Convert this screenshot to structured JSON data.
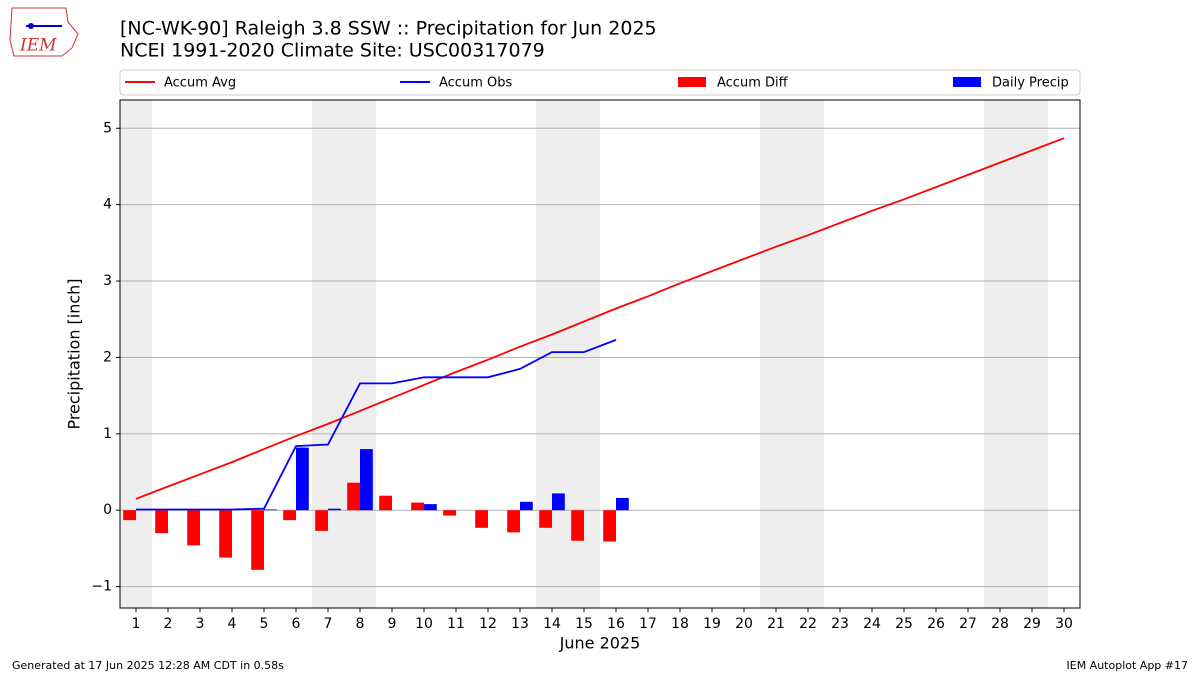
{
  "logo_text": "IEM",
  "chart_data": {
    "type": "combo",
    "title": "[NC-WK-90] Raleigh 3.8 SSW :: Precipitation for Jun 2025",
    "subtitle": "NCEI 1991-2020 Climate Site: USC00317079",
    "xlabel": "June 2025",
    "ylabel": "Precipitation [inch]",
    "x": [
      1,
      2,
      3,
      4,
      5,
      6,
      7,
      8,
      9,
      10,
      11,
      12,
      13,
      14,
      15,
      16,
      17,
      18,
      19,
      20,
      21,
      22,
      23,
      24,
      25,
      26,
      27,
      28,
      29,
      30
    ],
    "xlim": [
      0.5,
      30.5
    ],
    "xticks": [
      1,
      2,
      3,
      4,
      5,
      6,
      7,
      8,
      9,
      10,
      11,
      12,
      13,
      14,
      15,
      16,
      17,
      18,
      19,
      20,
      21,
      22,
      23,
      24,
      25,
      26,
      27,
      28,
      29,
      30
    ],
    "ylim": [
      -1.28,
      5.37
    ],
    "yticks": [
      {
        "value": -1,
        "label": "−1"
      },
      0,
      1,
      2,
      3,
      4,
      5
    ],
    "grid": true,
    "shaded_days": [
      1,
      7,
      8,
      14,
      15,
      21,
      22,
      28,
      29
    ],
    "series": [
      {
        "name": "Accum Avg",
        "kind": "line",
        "color": "#ff0000",
        "values": [
          0.15,
          0.31,
          0.47,
          0.63,
          0.8,
          0.97,
          1.13,
          1.3,
          1.47,
          1.64,
          1.81,
          1.97,
          2.14,
          2.3,
          2.47,
          2.64,
          2.8,
          2.97,
          3.13,
          3.29,
          3.45,
          3.6,
          3.76,
          3.92,
          4.07,
          4.23,
          4.39,
          4.55,
          4.71,
          4.87
        ]
      },
      {
        "name": "Accum Obs",
        "kind": "line",
        "color": "#0000ff",
        "values": [
          0.01,
          0.01,
          0.01,
          0.01,
          0.02,
          0.84,
          0.86,
          1.66,
          1.66,
          1.74,
          1.74,
          1.74,
          1.85,
          2.07,
          2.07,
          2.23,
          null,
          null,
          null,
          null,
          null,
          null,
          null,
          null,
          null,
          null,
          null,
          null,
          null,
          null
        ]
      },
      {
        "name": "Accum Diff",
        "kind": "bar",
        "offset": "left",
        "color": "#ff0000",
        "values": [
          -0.13,
          -0.3,
          -0.46,
          -0.62,
          -0.78,
          -0.13,
          -0.27,
          0.36,
          0.19,
          0.1,
          -0.07,
          -0.23,
          -0.29,
          -0.23,
          -0.4,
          -0.41,
          null,
          null,
          null,
          null,
          null,
          null,
          null,
          null,
          null,
          null,
          null,
          null,
          null,
          null
        ]
      },
      {
        "name": "Daily Precip",
        "kind": "bar",
        "offset": "right",
        "color": "#0000ff",
        "values": [
          0.01,
          0,
          0,
          0,
          0.01,
          0.82,
          0.02,
          0.8,
          0,
          0.08,
          0,
          0,
          0.11,
          0.22,
          0,
          0.16,
          null,
          null,
          null,
          null,
          null,
          null,
          null,
          null,
          null,
          null,
          null,
          null,
          null,
          null
        ]
      }
    ],
    "footer_left": "Generated at 17 Jun 2025 12:28 AM CDT in 0.58s",
    "footer_right": "IEM Autoplot App #17"
  }
}
